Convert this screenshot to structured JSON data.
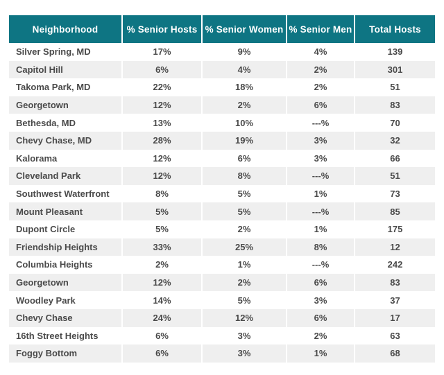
{
  "colors": {
    "header_bg": "#0e7583",
    "header_text": "#ffffff",
    "row_alt_bg": "#efefef",
    "body_text": "#4a4a4a"
  },
  "chart_data": {
    "type": "table",
    "title": "",
    "columns": [
      "Neighborhood",
      "% Senior Hosts",
      "% Senior Women",
      "% Senior Men",
      "Total Hosts"
    ],
    "rows": [
      [
        "Silver Spring, MD",
        "17%",
        "9%",
        "4%",
        "139"
      ],
      [
        "Capitol Hill",
        "6%",
        "4%",
        "2%",
        "301"
      ],
      [
        "Takoma Park, MD",
        "22%",
        "18%",
        "2%",
        "51"
      ],
      [
        "Georgetown",
        "12%",
        "2%",
        "6%",
        "83"
      ],
      [
        "Bethesda, MD",
        "13%",
        "10%",
        "---%",
        "70"
      ],
      [
        "Chevy Chase, MD",
        "28%",
        "19%",
        "3%",
        "32"
      ],
      [
        "Kalorama",
        "12%",
        "6%",
        "3%",
        "66"
      ],
      [
        "Cleveland Park",
        "12%",
        "8%",
        "---%",
        "51"
      ],
      [
        "Southwest Waterfront",
        "8%",
        "5%",
        "1%",
        "73"
      ],
      [
        "Mount Pleasant",
        "5%",
        "5%",
        "---%",
        "85"
      ],
      [
        "Dupont Circle",
        "5%",
        "2%",
        "1%",
        "175"
      ],
      [
        "Friendship Heights",
        "33%",
        "25%",
        "8%",
        "12"
      ],
      [
        "Columbia Heights",
        "2%",
        "1%",
        "---%",
        "242"
      ],
      [
        "Georgetown",
        "12%",
        "2%",
        "6%",
        "83"
      ],
      [
        "Woodley Park",
        "14%",
        "5%",
        "3%",
        "37"
      ],
      [
        "Chevy Chase",
        "24%",
        "12%",
        "6%",
        "17"
      ],
      [
        "16th Street Heights",
        "6%",
        "3%",
        "2%",
        "63"
      ],
      [
        "Foggy Bottom",
        "6%",
        "3%",
        "1%",
        "68"
      ]
    ],
    "layout": {
      "zebra_striping": true,
      "header_position": "top",
      "numeric_columns_align": "center",
      "first_column_align": "left"
    }
  }
}
